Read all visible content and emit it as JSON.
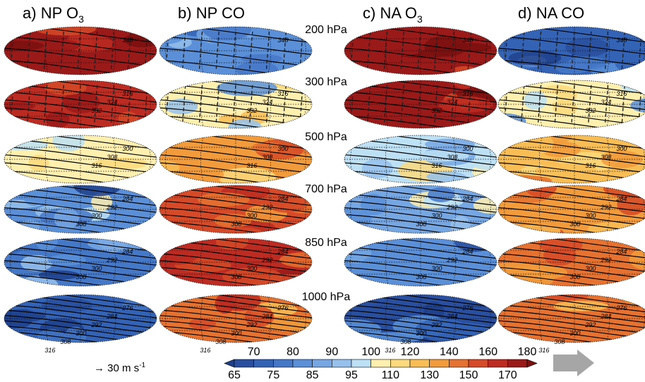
{
  "chart_data": {
    "type": "heatmap",
    "panels": [
      {
        "label": "a)",
        "title_main": "NP O",
        "title_sub": "3"
      },
      {
        "label": "b)",
        "title_main": "NP CO",
        "title_sub": ""
      },
      {
        "label": "c)",
        "title_main": "NA O",
        "title_sub": "3"
      },
      {
        "label": "d)",
        "title_main": "NA CO",
        "title_sub": ""
      }
    ],
    "levels": [
      {
        "label": "200 hPa",
        "contours": [
          "348"
        ],
        "values": [
          175,
          80,
          175,
          72
        ]
      },
      {
        "label": "300 hPa",
        "contours": [
          "316",
          "324",
          "332"
        ],
        "values": [
          165,
          103,
          172,
          100
        ]
      },
      {
        "label": "500 hPa",
        "contours": [
          "300",
          "308",
          "316"
        ],
        "values": [
          103,
          135,
          97,
          125
        ]
      },
      {
        "label": "700 hPa",
        "contours": [
          "284",
          "292",
          "300",
          "308"
        ],
        "values": [
          82,
          150,
          86,
          138
        ]
      },
      {
        "label": "850 hPa",
        "contours": [
          "284",
          "292",
          "300",
          "308"
        ],
        "values": [
          75,
          160,
          80,
          145
        ]
      },
      {
        "label": "1000 hPa",
        "contours": [
          "276",
          "284",
          "292",
          "300",
          "308",
          "316"
        ],
        "values": [
          70,
          148,
          68,
          140
        ]
      }
    ],
    "colorbar": {
      "top_ticks": [
        "70",
        "80",
        "90",
        "100",
        "120",
        "140",
        "160",
        "180"
      ],
      "bottom_ticks": [
        "65",
        "75",
        "85",
        "95",
        "110",
        "130",
        "150",
        "170"
      ],
      "bounds": [
        65,
        70,
        75,
        80,
        85,
        90,
        95,
        100,
        110,
        120,
        130,
        140,
        150,
        160,
        170,
        180
      ],
      "colors": [
        "#2a4f9e",
        "#3463b5",
        "#4678c8",
        "#5b90d8",
        "#77a7e3",
        "#97c1ec",
        "#bde0f5",
        "#fff0b0",
        "#fcd97c",
        "#f8bd55",
        "#f19b3c",
        "#e57230",
        "#d54a28",
        "#bc2c22",
        "#9a1a1a"
      ],
      "under_color": "#1f3f8a",
      "over_color": "#7a1010"
    },
    "wind_reference": "→ 30 m s",
    "wind_reference_sup": "-1"
  }
}
